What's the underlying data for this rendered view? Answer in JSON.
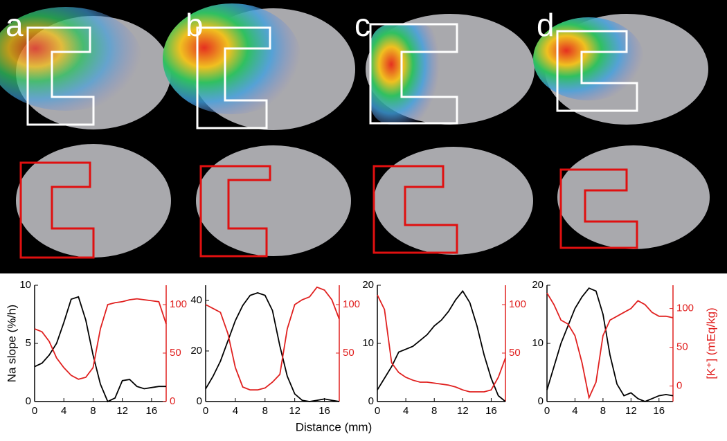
{
  "panel_labels": [
    "a",
    "b",
    "c",
    "d"
  ],
  "xlabel": "Distance (mm)",
  "chart_data": [
    {
      "type": "line",
      "ylabel": "Na slope (%/h)",
      "xlim": [
        0,
        18
      ],
      "xticks": [
        0,
        4,
        8,
        12,
        16
      ],
      "ylim": [
        0,
        10
      ],
      "yticks": [
        0,
        5,
        10
      ],
      "y2lim": [
        0,
        120
      ],
      "y2ticks": [
        0,
        50,
        100
      ],
      "x": [
        0,
        1,
        2,
        3,
        4,
        5,
        6,
        7,
        8,
        9,
        10,
        11,
        12,
        13,
        14,
        15,
        16,
        17,
        18
      ],
      "series": [
        {
          "color": "#000000",
          "values": [
            3,
            3.3,
            4,
            5,
            6.8,
            8.8,
            9,
            7,
            4,
            1.5,
            0,
            0.3,
            1.8,
            1.9,
            1.3,
            1.1,
            1.2,
            1.3,
            1.3
          ]
        },
        {
          "color": "#e0201f",
          "axis": "y2",
          "values": [
            75,
            72,
            62,
            45,
            35,
            27,
            23,
            25,
            35,
            75,
            100,
            102,
            103,
            105,
            106,
            105,
            104,
            103,
            80
          ]
        }
      ]
    },
    {
      "type": "line",
      "xlim": [
        0,
        18
      ],
      "xticks": [
        0,
        4,
        8,
        12,
        16
      ],
      "ylim": [
        0,
        46
      ],
      "yticks": [
        0,
        20,
        40
      ],
      "y2lim": [
        0,
        120
      ],
      "y2ticks": [
        50,
        100
      ],
      "x": [
        0,
        1,
        2,
        3,
        4,
        5,
        6,
        7,
        8,
        9,
        10,
        11,
        12,
        13,
        14,
        15,
        16,
        17,
        18
      ],
      "series": [
        {
          "color": "#000000",
          "values": [
            5,
            10,
            16,
            24,
            32,
            38,
            42,
            43,
            42,
            36,
            22,
            10,
            3,
            0.5,
            0,
            0.5,
            1,
            0.5,
            0
          ]
        },
        {
          "color": "#e0201f",
          "axis": "y2",
          "values": [
            100,
            96,
            92,
            70,
            35,
            15,
            12,
            12,
            14,
            20,
            28,
            75,
            100,
            105,
            108,
            118,
            115,
            105,
            85
          ]
        }
      ]
    },
    {
      "type": "line",
      "xlim": [
        0,
        18
      ],
      "xticks": [
        0,
        4,
        8,
        12,
        16
      ],
      "ylim": [
        0,
        20
      ],
      "yticks": [
        0,
        10,
        20
      ],
      "y2lim": [
        0,
        120
      ],
      "y2ticks": [
        50,
        100
      ],
      "x": [
        0,
        1,
        2,
        3,
        4,
        5,
        6,
        7,
        8,
        9,
        10,
        11,
        12,
        13,
        14,
        15,
        16,
        17,
        18
      ],
      "series": [
        {
          "color": "#000000",
          "values": [
            2,
            4,
            6,
            8.5,
            9,
            9.5,
            10.5,
            11.5,
            13,
            14,
            15.5,
            17.5,
            19,
            17,
            13,
            8,
            4,
            1,
            0
          ]
        },
        {
          "color": "#e0201f",
          "axis": "y2",
          "values": [
            110,
            95,
            40,
            30,
            25,
            22,
            20,
            20,
            19,
            18,
            17,
            15,
            12,
            10,
            10,
            10,
            12,
            25,
            45
          ]
        }
      ]
    },
    {
      "type": "line",
      "y2label": "[K⁺] (mEq/kg)",
      "xlim": [
        0,
        18
      ],
      "xticks": [
        0,
        4,
        8,
        12,
        16
      ],
      "ylim": [
        0,
        20
      ],
      "yticks": [
        0,
        10,
        20
      ],
      "y2lim": [
        -20,
        130
      ],
      "y2ticks": [
        0,
        50,
        100
      ],
      "x": [
        0,
        1,
        2,
        3,
        4,
        5,
        6,
        7,
        8,
        9,
        10,
        11,
        12,
        13,
        14,
        15,
        16,
        17,
        18
      ],
      "series": [
        {
          "color": "#000000",
          "values": [
            2,
            6,
            10,
            13,
            16,
            18,
            19.5,
            19,
            15,
            8,
            3,
            1,
            1.5,
            0.5,
            0,
            0.5,
            1,
            1.2,
            1
          ]
        },
        {
          "color": "#e0201f",
          "axis": "y2",
          "values": [
            120,
            105,
            85,
            80,
            65,
            30,
            -15,
            5,
            65,
            85,
            90,
            95,
            100,
            110,
            105,
            95,
            90,
            90,
            88
          ]
        }
      ]
    }
  ]
}
